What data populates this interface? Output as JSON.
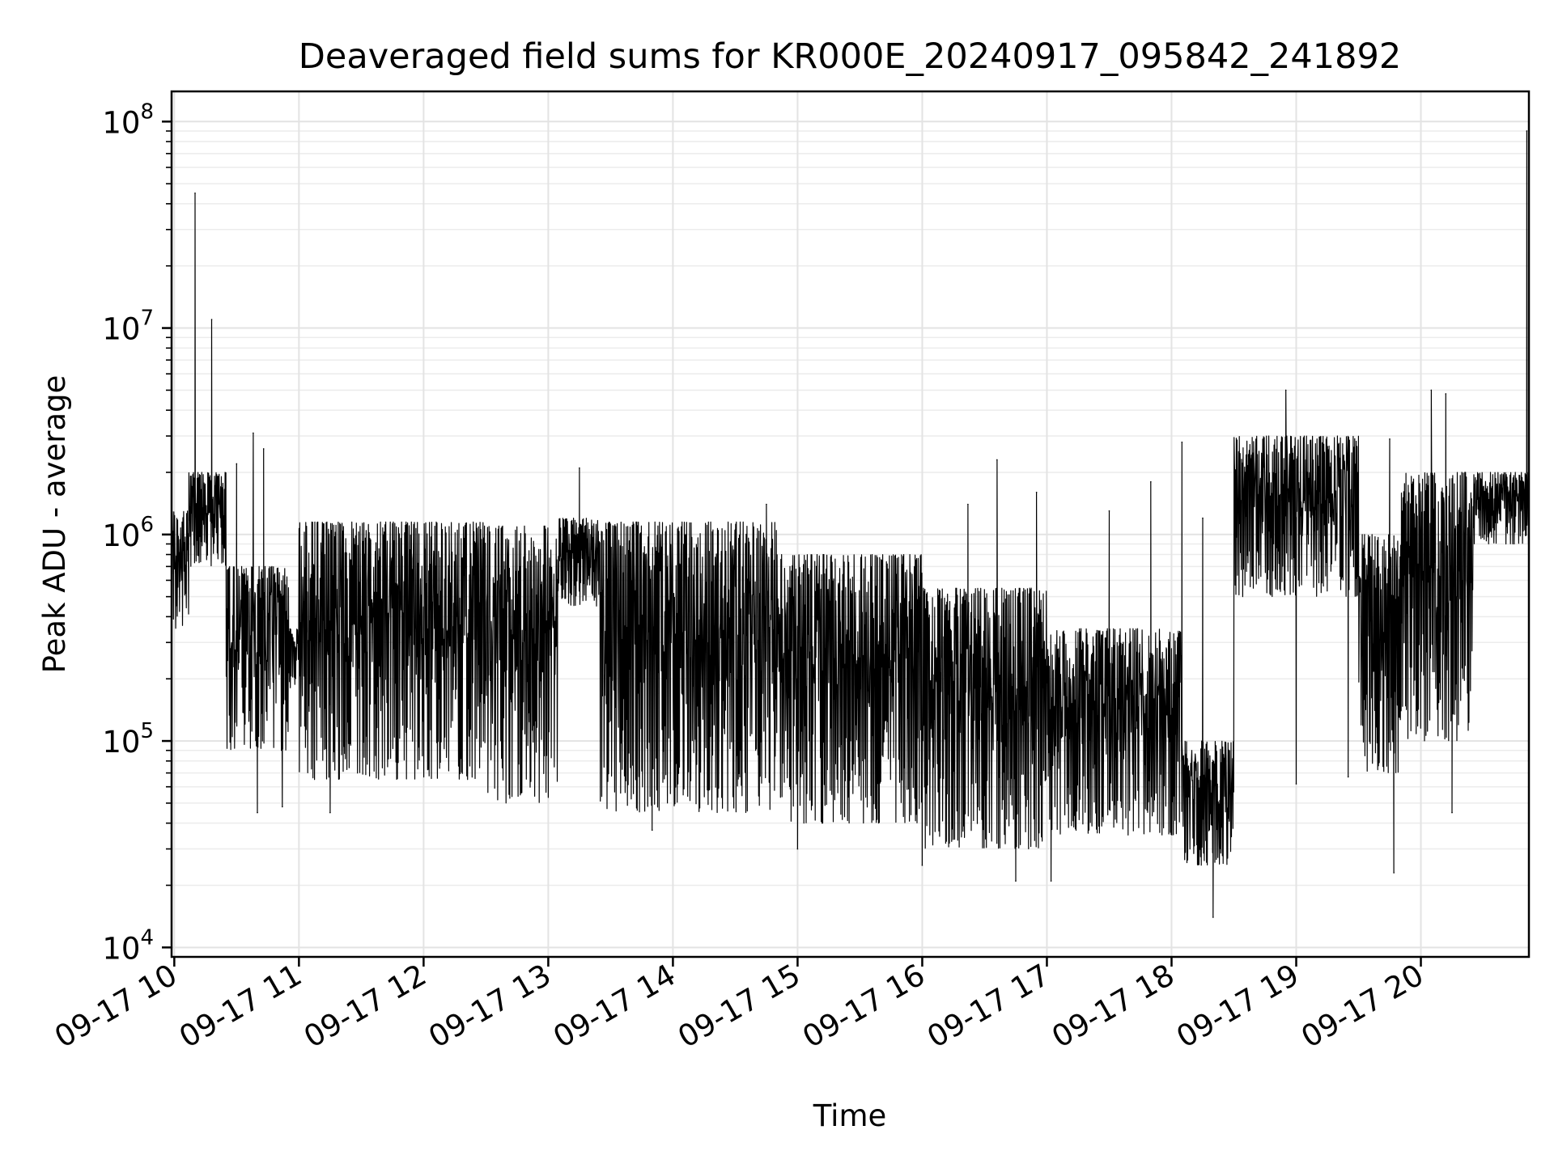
{
  "chart_data": {
    "type": "line",
    "title": "Deaveraged field sums for KR000E_20240917_095842_241892",
    "xlabel": "Time",
    "ylabel": "Peak ADU - average",
    "yscale": "log",
    "ylim": [
      9000,
      140000000
    ],
    "xlim": [
      "2024-09-17 09:58:42",
      "2024-09-17 20:52:00"
    ],
    "grid": true,
    "legend": "none",
    "y_ticks": [
      {
        "value": 10000,
        "base": "10",
        "exp": "4"
      },
      {
        "value": 100000,
        "base": "10",
        "exp": "5"
      },
      {
        "value": 1000000,
        "base": "10",
        "exp": "6"
      },
      {
        "value": 10000000,
        "base": "10",
        "exp": "7"
      },
      {
        "value": 100000000,
        "base": "10",
        "exp": "8"
      }
    ],
    "x_ticks": [
      {
        "time": "2024-09-17 10:00",
        "label": "09-17 10"
      },
      {
        "time": "2024-09-17 11:00",
        "label": "09-17 11"
      },
      {
        "time": "2024-09-17 12:00",
        "label": "09-17 12"
      },
      {
        "time": "2024-09-17 13:00",
        "label": "09-17 13"
      },
      {
        "time": "2024-09-17 14:00",
        "label": "09-17 14"
      },
      {
        "time": "2024-09-17 15:00",
        "label": "09-17 15"
      },
      {
        "time": "2024-09-17 16:00",
        "label": "09-17 16"
      },
      {
        "time": "2024-09-17 17:00",
        "label": "09-17 17"
      },
      {
        "time": "2024-09-17 18:00",
        "label": "09-17 18"
      },
      {
        "time": "2024-09-17 19:00",
        "label": "09-17 19"
      },
      {
        "time": "2024-09-17 20:00",
        "label": "09-17 20"
      }
    ],
    "series": [
      {
        "color": "#000000",
        "note_envelope": "approximate upper/lower envelope of dense signal per time segment",
        "segments": [
          {
            "start": "2024-09-17 09:58:42",
            "end": "2024-09-17 10:07",
            "high": 1300000,
            "low": 350000
          },
          {
            "start": "2024-09-17 10:07",
            "end": "2024-09-17 10:25",
            "high": 2000000,
            "low": 700000
          },
          {
            "start": "2024-09-17 10:25",
            "end": "2024-09-17 10:55",
            "high": 700000,
            "low": 90000
          },
          {
            "start": "2024-09-17 10:55",
            "end": "2024-09-17 11:00",
            "high": 350000,
            "low": 180000
          },
          {
            "start": "2024-09-17 11:00",
            "end": "2024-09-17 12:30",
            "high": 1150000,
            "low": 65000
          },
          {
            "start": "2024-09-17 12:30",
            "end": "2024-09-17 13:05",
            "high": 1100000,
            "low": 50000
          },
          {
            "start": "2024-09-17 13:05",
            "end": "2024-09-17 13:25",
            "high": 1200000,
            "low": 450000
          },
          {
            "start": "2024-09-17 13:25",
            "end": "2024-09-17 14:50",
            "high": 1150000,
            "low": 45000
          },
          {
            "start": "2024-09-17 14:50",
            "end": "2024-09-17 16:00",
            "high": 800000,
            "low": 40000
          },
          {
            "start": "2024-09-17 16:00",
            "end": "2024-09-17 17:00",
            "high": 550000,
            "low": 30000
          },
          {
            "start": "2024-09-17 17:00",
            "end": "2024-09-17 18:05",
            "high": 350000,
            "low": 35000
          },
          {
            "start": "2024-09-17 18:05",
            "end": "2024-09-17 18:30",
            "high": 100000,
            "low": 25000
          },
          {
            "start": "2024-09-17 18:30",
            "end": "2024-09-17 19:30",
            "high": 3000000,
            "low": 500000
          },
          {
            "start": "2024-09-17 19:30",
            "end": "2024-09-17 19:50",
            "high": 1000000,
            "low": 70000
          },
          {
            "start": "2024-09-17 19:50",
            "end": "2024-09-17 20:25",
            "high": 2000000,
            "low": 100000
          },
          {
            "start": "2024-09-17 20:25",
            "end": "2024-09-17 20:52",
            "high": 2000000,
            "low": 900000
          }
        ],
        "spikes": [
          {
            "time": "2024-09-17 10:10",
            "value": 45000000
          },
          {
            "time": "2024-09-17 10:18",
            "value": 11000000
          },
          {
            "time": "2024-09-17 10:30",
            "value": 2200000
          },
          {
            "time": "2024-09-17 10:38",
            "value": 3100000
          },
          {
            "time": "2024-09-17 10:40",
            "value": 45000
          },
          {
            "time": "2024-09-17 10:43",
            "value": 2600000
          },
          {
            "time": "2024-09-17 10:52",
            "value": 48000
          },
          {
            "time": "2024-09-17 11:15",
            "value": 45000
          },
          {
            "time": "2024-09-17 13:15",
            "value": 2100000
          },
          {
            "time": "2024-09-17 13:50",
            "value": 37000
          },
          {
            "time": "2024-09-17 14:45",
            "value": 1400000
          },
          {
            "time": "2024-09-17 15:00",
            "value": 30000
          },
          {
            "time": "2024-09-17 16:00",
            "value": 25000
          },
          {
            "time": "2024-09-17 16:22",
            "value": 1400000
          },
          {
            "time": "2024-09-17 16:36",
            "value": 2300000
          },
          {
            "time": "2024-09-17 16:45",
            "value": 21000
          },
          {
            "time": "2024-09-17 16:55",
            "value": 1600000
          },
          {
            "time": "2024-09-17 17:02",
            "value": 21000
          },
          {
            "time": "2024-09-17 17:30",
            "value": 1300000
          },
          {
            "time": "2024-09-17 17:50",
            "value": 1800000
          },
          {
            "time": "2024-09-17 18:05",
            "value": 2800000
          },
          {
            "time": "2024-09-17 18:15",
            "value": 1200000
          },
          {
            "time": "2024-09-17 18:20",
            "value": 14000
          },
          {
            "time": "2024-09-17 18:37",
            "value": 2400000
          },
          {
            "time": "2024-09-17 18:55",
            "value": 5000000
          },
          {
            "time": "2024-09-17 19:00",
            "value": 62000
          },
          {
            "time": "2024-09-17 19:25",
            "value": 67000
          },
          {
            "time": "2024-09-17 19:45",
            "value": 2900000
          },
          {
            "time": "2024-09-17 19:47",
            "value": 23000
          },
          {
            "time": "2024-09-17 20:05",
            "value": 5000000
          },
          {
            "time": "2024-09-17 20:12",
            "value": 4800000
          },
          {
            "time": "2024-09-17 20:15",
            "value": 45000
          },
          {
            "time": "2024-09-17 20:51",
            "value": 90000000
          }
        ]
      }
    ]
  }
}
